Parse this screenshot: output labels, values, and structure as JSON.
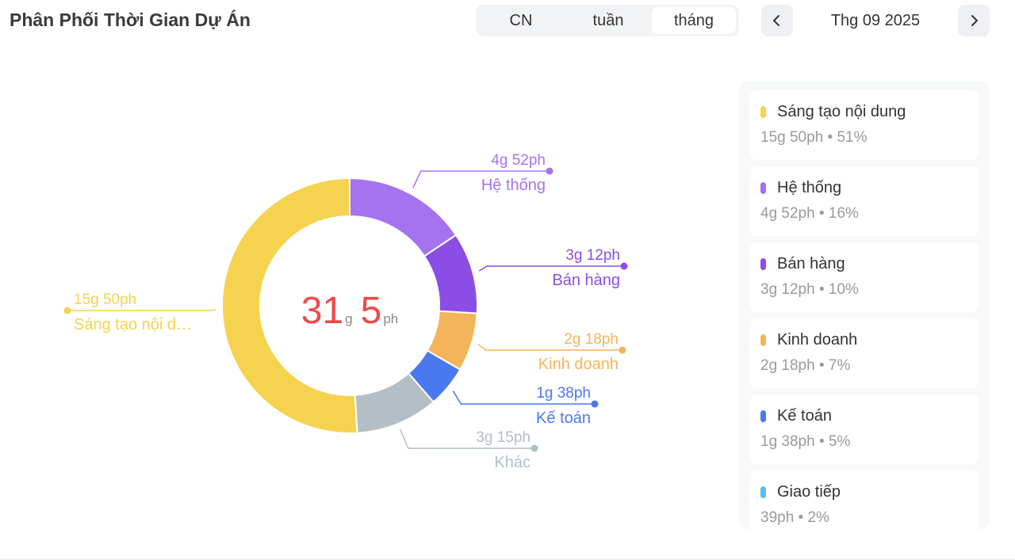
{
  "header": {
    "title": "Phân Phối Thời Gian Dự Án",
    "tabs": [
      "CN",
      "tuần",
      "tháng"
    ],
    "active_tab": "tháng",
    "period": "Thg 09 2025"
  },
  "center": {
    "hours": "31",
    "hours_unit": "g",
    "minutes": "5",
    "minutes_unit": "ph",
    "color": "#ee4a4a"
  },
  "chart_data": {
    "type": "pie",
    "donut": true,
    "total_minutes": 1865,
    "slices": [
      {
        "name": "Hệ thống",
        "value": 292,
        "time": "4g 52ph",
        "pct": "16%",
        "color": "#a673f0"
      },
      {
        "name": "Bán hàng",
        "value": 192,
        "time": "3g 12ph",
        "pct": "10%",
        "color": "#8a4de6"
      },
      {
        "name": "Kinh doanh",
        "value": 138,
        "time": "2g 18ph",
        "pct": "7%",
        "color": "#f4b45a"
      },
      {
        "name": "Kế toán",
        "value": 98,
        "time": "1g 38ph",
        "pct": "5%",
        "color": "#4a78f0"
      },
      {
        "name": "Khác",
        "value": 195,
        "time": "3g 15ph",
        "pct": "",
        "color": "#b3bec6"
      },
      {
        "name": "Sáng tạo nội dung",
        "value": 950,
        "time": "15g 50ph",
        "pct": "51%",
        "color": "#f6d34f",
        "label": "Sáng tạo nội d…"
      }
    ]
  },
  "legend": [
    {
      "name": "Sáng tạo nội dung",
      "stats": "15g 50ph • 51%",
      "color": "#f6d34f"
    },
    {
      "name": "Hệ thống",
      "stats": "4g 52ph • 16%",
      "color": "#a673f0"
    },
    {
      "name": "Bán hàng",
      "stats": "3g 12ph • 10%",
      "color": "#8a4de6"
    },
    {
      "name": "Kinh doanh",
      "stats": "2g 18ph • 7%",
      "color": "#f4b45a"
    },
    {
      "name": "Kế toán",
      "stats": "1g 38ph • 5%",
      "color": "#4a78f0"
    },
    {
      "name": "Giao tiếp",
      "stats": "39ph • 2%",
      "color": "#5bc0e6"
    }
  ],
  "icons": {
    "prev": "chevron-left-icon",
    "next": "chevron-right-icon"
  }
}
